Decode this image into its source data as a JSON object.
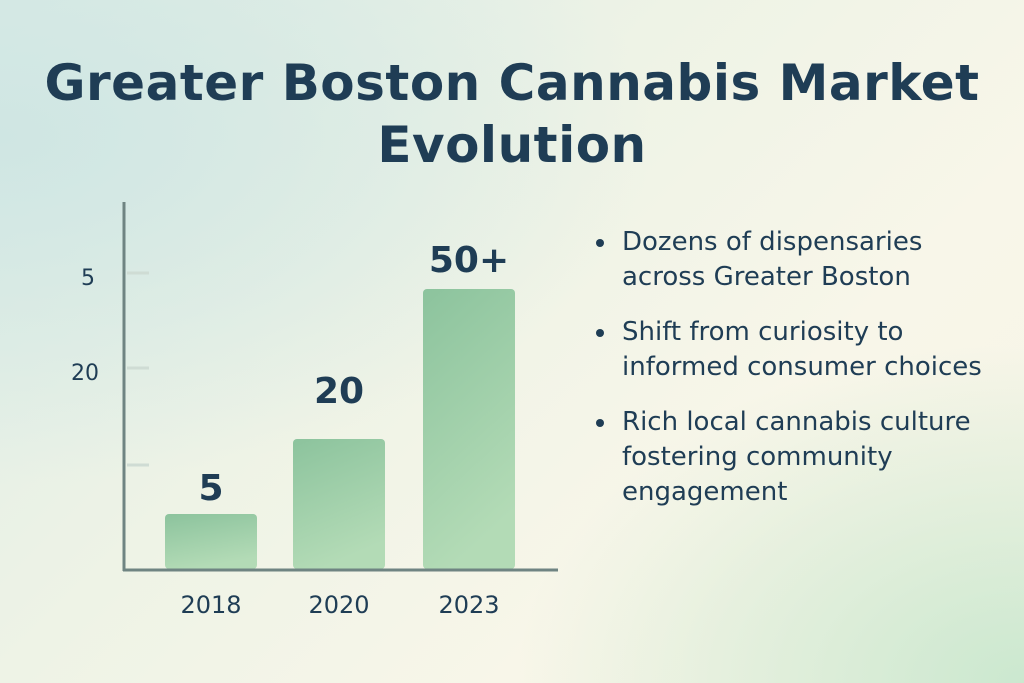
{
  "title": "Greater Boston Cannabis Market Evolution",
  "chart_data": {
    "type": "bar",
    "title": "Greater Boston Cannabis Market Evolution",
    "categories": [
      "2018",
      "2020",
      "2023"
    ],
    "values": [
      5,
      20,
      50
    ],
    "data_labels": [
      "5",
      "20",
      "50+"
    ],
    "y_tick_labels": [
      "5",
      "20"
    ],
    "xlabel": "",
    "ylabel": "",
    "grid": false,
    "bar_color": "#8fc49e"
  },
  "bullets": [
    "Dozens of dispensaries across Greater Boston",
    "Shift from curiosity to informed consumer choices",
    "Rich local cannabis culture fostering community engagement"
  ]
}
